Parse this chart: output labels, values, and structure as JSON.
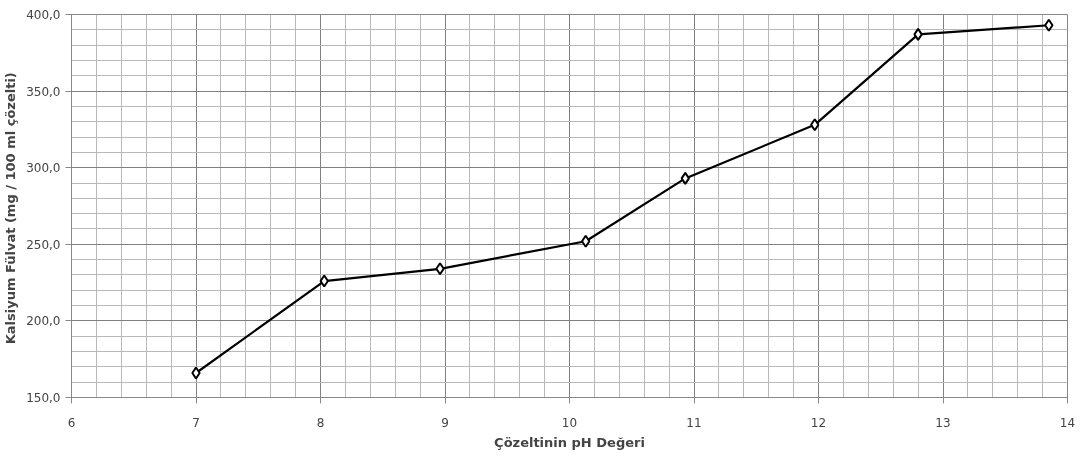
{
  "chart_data": {
    "type": "line",
    "xlabel": "Çözeltinin pH Değeri",
    "ylabel": "Kalsiyum Fülvat (mg / 100  ml çözelti)",
    "x": [
      7.0,
      8.03,
      8.96,
      10.13,
      10.93,
      11.97,
      12.8,
      13.85
    ],
    "series": [
      {
        "color": "#000000",
        "values": [
          166,
          226,
          234,
          252,
          293,
          328,
          387,
          393
        ]
      }
    ],
    "xlim": [
      6,
      14
    ],
    "xticks": [
      6,
      7,
      8,
      9,
      10,
      11,
      12,
      13,
      14
    ],
    "ylim": [
      150,
      400
    ],
    "yticks": [
      {
        "value": 150,
        "label": "150,0"
      },
      {
        "value": 200,
        "label": "200,0"
      },
      {
        "value": 250,
        "label": "250,0"
      },
      {
        "value": 300,
        "label": "300,0"
      },
      {
        "value": 350,
        "label": "350,0"
      },
      {
        "value": 400,
        "label": "400,0"
      }
    ],
    "grid": true,
    "marker": "diamond",
    "line_style": "solid"
  }
}
